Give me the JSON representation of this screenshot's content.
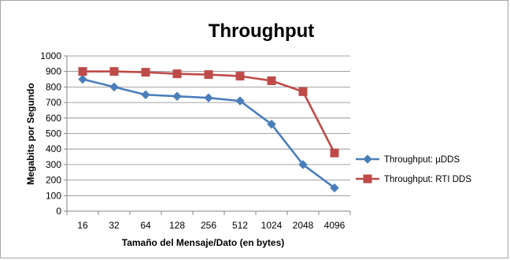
{
  "chart_data": {
    "type": "line",
    "title": "Throughput",
    "xlabel": "Tamaño del Mensaje/Dato  (en bytes)",
    "ylabel": "Megabits por Segundo",
    "categories": [
      "16",
      "32",
      "64",
      "128",
      "256",
      "512",
      "1024",
      "2048",
      "4096"
    ],
    "ylim": [
      0,
      1000
    ],
    "yticks": [
      0,
      100,
      200,
      300,
      400,
      500,
      600,
      700,
      800,
      900,
      1000
    ],
    "grid": true,
    "legend_position": "right",
    "series": [
      {
        "name": "Throughput: µDDS",
        "values": [
          850,
          800,
          750,
          740,
          730,
          710,
          560,
          300,
          150
        ],
        "color": "#4a7ebb",
        "marker": "diamond"
      },
      {
        "name": "Throughput: RTI DDS",
        "values": [
          900,
          900,
          895,
          885,
          880,
          870,
          840,
          770,
          375
        ],
        "color": "#be4b48",
        "marker": "square"
      }
    ]
  }
}
